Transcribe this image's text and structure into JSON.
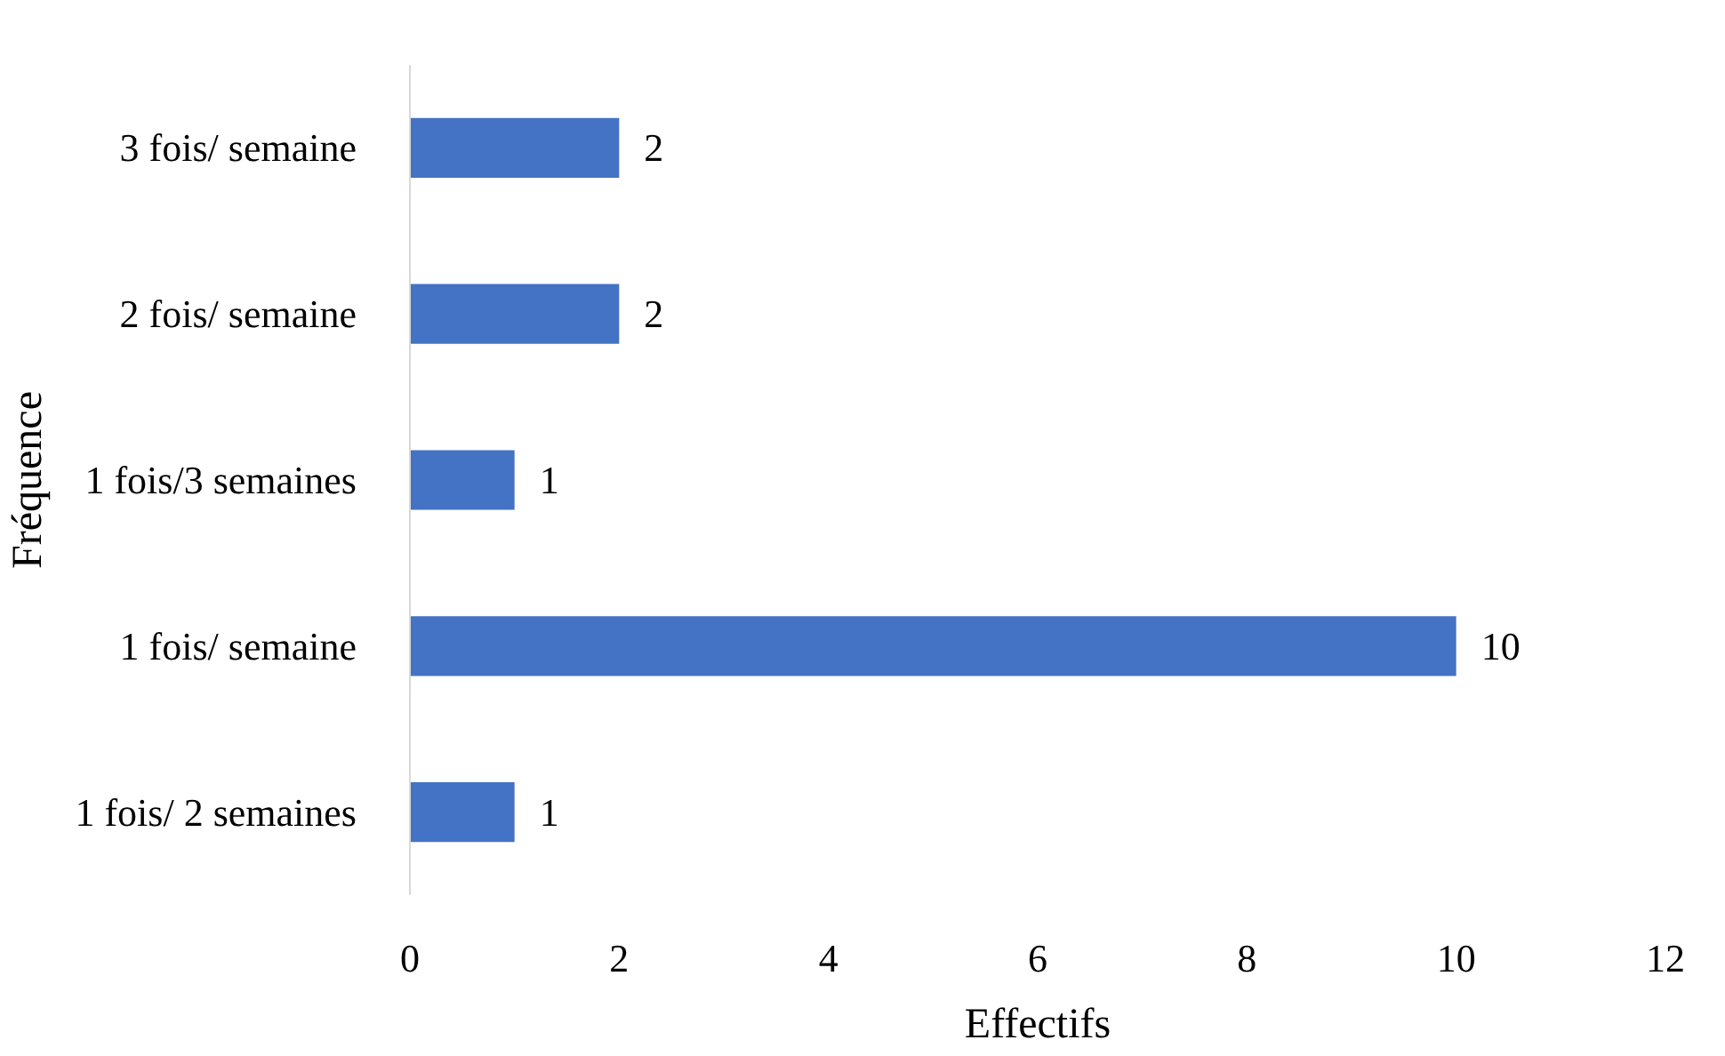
{
  "chart_data": {
    "type": "bar",
    "orientation": "horizontal",
    "xlabel": "Effectifs",
    "ylabel": "Fréquence",
    "categories": [
      "3 fois/ semaine",
      "2 fois/ semaine",
      "1 fois/3 semaines",
      "1 fois/ semaine",
      "1 fois/ 2 semaines"
    ],
    "values": [
      2,
      2,
      1,
      10,
      1
    ],
    "color": "#4472c4",
    "xlim": [
      0,
      12
    ],
    "xticks": [
      0,
      2,
      4,
      6,
      8,
      10,
      12
    ],
    "data_labels": true
  }
}
